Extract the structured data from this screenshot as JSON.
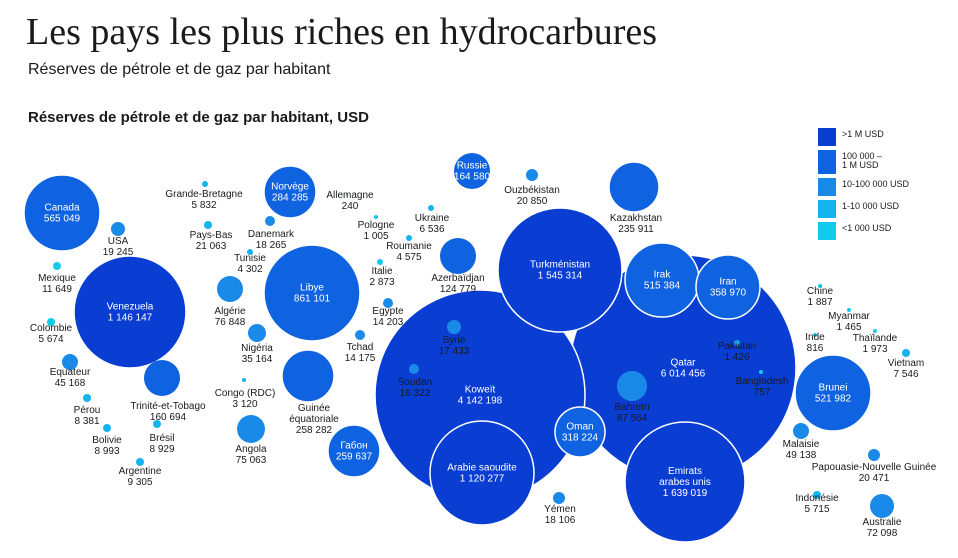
{
  "header": {
    "title": "Les pays les plus riches en hydrocarbures",
    "subtitle": "Réserves de pétrole et de gaz par habitant"
  },
  "chart_data": {
    "type": "bubble",
    "title": "Réserves de pétrole et de gaz par habitant, USD",
    "legend": [
      {
        "label": ">1 M USD",
        "color": "#0a3ed3"
      },
      {
        "label": "100 000 –\n1 M USD",
        "color": "#1063e0"
      },
      {
        "label": "10-100 000 USD",
        "color": "#1a8ae8"
      },
      {
        "label": "1-10 000 USD",
        "color": "#14b4ef"
      },
      {
        "label": "<1 000 USD",
        "color": "#10cbec"
      }
    ],
    "series": [
      {
        "name": "Canada",
        "value": "565 049"
      },
      {
        "name": "USA",
        "value": "19 245"
      },
      {
        "name": "Mexique",
        "value": "11 649"
      },
      {
        "name": "Venezuela",
        "value": "1 146 147"
      },
      {
        "name": "Colombie",
        "value": "5 674"
      },
      {
        "name": "Equateur",
        "value": "45 168"
      },
      {
        "name": "Pérou",
        "value": "8 381"
      },
      {
        "name": "Bolivie",
        "value": "8 993"
      },
      {
        "name": "Brésil",
        "value": "8 929"
      },
      {
        "name": "Argentine",
        "value": "9 305"
      },
      {
        "name": "Trinité-et-Tobago",
        "value": "160 694"
      },
      {
        "name": "Grande-Bretagne",
        "value": "5 832"
      },
      {
        "name": "Pays-Bas",
        "value": "21 063"
      },
      {
        "name": "Danemark",
        "value": "18 265"
      },
      {
        "name": "Norvège",
        "value": "284 285"
      },
      {
        "name": "Allemagne",
        "value": "240"
      },
      {
        "name": "Pologne",
        "value": "1 005"
      },
      {
        "name": "Ukraine",
        "value": "6 536"
      },
      {
        "name": "Roumanie",
        "value": "4 575"
      },
      {
        "name": "Italie",
        "value": "2 873"
      },
      {
        "name": "Tunisie",
        "value": "4 302"
      },
      {
        "name": "Libye",
        "value": "861 101"
      },
      {
        "name": "Algérie",
        "value": "76 848"
      },
      {
        "name": "Nigéria",
        "value": "35 164"
      },
      {
        "name": "Egypte",
        "value": "14 203"
      },
      {
        "name": "Tchad",
        "value": "14 175"
      },
      {
        "name": "Congo (RDC)",
        "value": "3 120"
      },
      {
        "name": "Guinée équatoriale",
        "value": "258 282"
      },
      {
        "name": "Angola",
        "value": "75 063"
      },
      {
        "name": "Габон",
        "value": "259 637"
      },
      {
        "name": "Russie",
        "value": "164 580"
      },
      {
        "name": "Ouzbékistan",
        "value": "20 850"
      },
      {
        "name": "Kazakhstan",
        "value": "235 911"
      },
      {
        "name": "Azerbaïdjan",
        "value": "124 779"
      },
      {
        "name": "Turkménistan",
        "value": "1 545 314"
      },
      {
        "name": "Irak",
        "value": "515 384"
      },
      {
        "name": "Iran",
        "value": "358 970"
      },
      {
        "name": "Syrie",
        "value": "17 433"
      },
      {
        "name": "Soudan",
        "value": "16 322"
      },
      {
        "name": "Koweït",
        "value": "4 142 198"
      },
      {
        "name": "Arabie saoudite",
        "value": "1 120 277"
      },
      {
        "name": "Oman",
        "value": "318 224"
      },
      {
        "name": "Qatar",
        "value": "6 014 456"
      },
      {
        "name": "Bahreïn",
        "value": "87 564"
      },
      {
        "name": "Emirats arabes unis",
        "value": "1 639 019"
      },
      {
        "name": "Yémen",
        "value": "18 106"
      },
      {
        "name": "Pakistan",
        "value": "1 426"
      },
      {
        "name": "Bangladesh",
        "value": "757"
      },
      {
        "name": "Inde",
        "value": "816"
      },
      {
        "name": "Chine",
        "value": "1 887"
      },
      {
        "name": "Myanmar",
        "value": "1 465"
      },
      {
        "name": "Thaïlande",
        "value": "1 973"
      },
      {
        "name": "Vietnam",
        "value": "7 546"
      },
      {
        "name": "Brunei",
        "value": "521 982"
      },
      {
        "name": "Malaisie",
        "value": "49 138"
      },
      {
        "name": "Papouasie-Nouvelle Guinée",
        "value": "20 471"
      },
      {
        "name": "Indonésie",
        "value": "5 715"
      },
      {
        "name": "Australie",
        "value": "72 098"
      }
    ]
  }
}
